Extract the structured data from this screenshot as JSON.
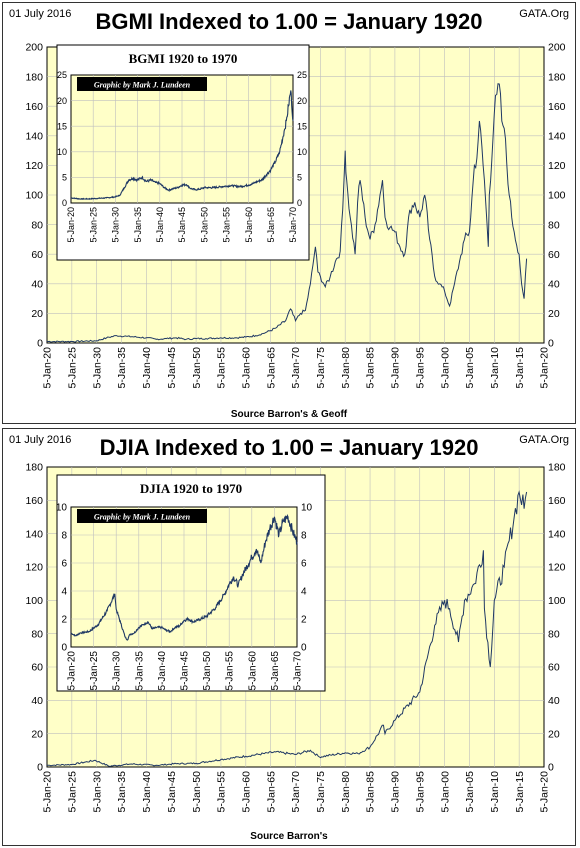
{
  "panels": [
    {
      "date": "01 July 2016",
      "site": "GATA.Org",
      "title": "BGMI  Indexed to 1.00 = January 1920",
      "source": "Source Barron's & Geoff",
      "inset_title": "BGMI  1920 to 1970",
      "credit": "Graphic by Mark J. Lundeen"
    },
    {
      "date": "01 July 2016",
      "site": "GATA.Org",
      "title": "DJIA  Indexed to 1.00 = January 1920",
      "source": "Source Barron's",
      "inset_title": "DJIA  1920 to 1970",
      "credit": "Graphic by Mark J. Lundeen"
    }
  ],
  "colors": {
    "plot_bg": "#FFFFC8",
    "line": "#1F3864",
    "grid": "#BFBFBF"
  },
  "chart_data": [
    {
      "id": "bgmi-main",
      "type": "line",
      "title": "BGMI  Indexed to 1.00 = January 1920",
      "xlabel": "Source Barron's & Geoff",
      "x_ticks": [
        "5-Jan-20",
        "5-Jan-25",
        "5-Jan-30",
        "5-Jan-35",
        "5-Jan-40",
        "5-Jan-45",
        "5-Jan-50",
        "5-Jan-55",
        "5-Jan-60",
        "5-Jan-65",
        "5-Jan-70",
        "5-Jan-75",
        "5-Jan-80",
        "5-Jan-85",
        "5-Jan-90",
        "5-Jan-95",
        "5-Jan-00",
        "5-Jan-05",
        "5-Jan-10",
        "5-Jan-15",
        "5-Jan-20"
      ],
      "xlim": [
        1920,
        2020
      ],
      "ylim": [
        0,
        200
      ],
      "y_ticks": [
        0,
        20,
        40,
        60,
        80,
        100,
        120,
        140,
        160,
        180,
        200
      ],
      "grid": true,
      "series": [
        {
          "x": [
            1920,
            1925,
            1930,
            1932,
            1934,
            1936,
            1938,
            1940,
            1942,
            1944,
            1946,
            1948,
            1950,
            1952,
            1955,
            1958,
            1960,
            1962,
            1964,
            1966,
            1968,
            1969,
            1970,
            1971,
            1972,
            1973,
            1974,
            1974.5,
            1975,
            1976,
            1977,
            1978,
            1979,
            1979.5,
            1980,
            1980.3,
            1981,
            1982,
            1982.5,
            1983,
            1984,
            1985,
            1986,
            1987,
            1987.5,
            1988,
            1989,
            1990,
            1991,
            1992,
            1993,
            1994,
            1995,
            1996,
            1997,
            1998,
            1999,
            2000,
            2001,
            2002,
            2003,
            2004,
            2005,
            2006,
            2006.5,
            2007,
            2008,
            2008.8,
            2009,
            2010,
            2010.5,
            2011,
            2011.5,
            2012,
            2013,
            2013.5,
            2014,
            2015,
            2015.5,
            2016,
            2016.5
          ],
          "y": [
            1.0,
            1.0,
            1.5,
            3.5,
            5.0,
            4.5,
            4.0,
            3.5,
            2.5,
            3.0,
            3.5,
            2.5,
            3.0,
            3.0,
            3.5,
            3.5,
            4.0,
            5.0,
            7.0,
            10.0,
            15.0,
            23.0,
            15.0,
            20.0,
            22.0,
            40.0,
            65.0,
            48.0,
            45.0,
            38.0,
            45.0,
            55.0,
            62.0,
            90.0,
            130.0,
            110.0,
            85.0,
            60.0,
            95.0,
            110.0,
            85.0,
            70.0,
            80.0,
            100.0,
            110.0,
            85.0,
            78.0,
            75.0,
            65.0,
            60.0,
            90.0,
            95.0,
            85.0,
            100.0,
            70.0,
            45.0,
            40.0,
            35.0,
            25.0,
            40.0,
            55.0,
            70.0,
            75.0,
            120.0,
            125.0,
            150.0,
            110.0,
            65.0,
            100.0,
            155.0,
            168.0,
            175.0,
            150.0,
            145.0,
            100.0,
            85.0,
            75.0,
            60.0,
            40.0,
            30.0,
            57.0
          ]
        }
      ]
    },
    {
      "id": "bgmi-inset",
      "type": "line",
      "title": "BGMI  1920 to 1970",
      "x_ticks": [
        "5-Jan-20",
        "5-Jan-25",
        "5-Jan-30",
        "5-Jan-35",
        "5-Jan-40",
        "5-Jan-45",
        "5-Jan-50",
        "5-Jan-55",
        "5-Jan-60",
        "5-Jan-65",
        "5-Jan-70"
      ],
      "xlim": [
        1920,
        1970
      ],
      "ylim": [
        0,
        25
      ],
      "y_ticks": [
        0,
        5,
        10,
        15,
        20,
        25
      ],
      "grid": true,
      "series": [
        {
          "x": [
            1920,
            1922,
            1924,
            1926,
            1928,
            1930,
            1931,
            1932,
            1933,
            1934,
            1935,
            1936,
            1937,
            1938,
            1939,
            1940,
            1941,
            1942,
            1943,
            1944,
            1945,
            1946,
            1947,
            1948,
            1949,
            1950,
            1952,
            1954,
            1956,
            1958,
            1960,
            1961,
            1962,
            1963,
            1964,
            1965,
            1966,
            1967,
            1968,
            1968.5,
            1969,
            1969.5,
            1970
          ],
          "y": [
            1.0,
            0.8,
            0.8,
            0.9,
            1.0,
            1.2,
            1.5,
            3.0,
            4.5,
            4.8,
            4.5,
            5.0,
            4.2,
            4.5,
            4.0,
            3.8,
            3.0,
            2.5,
            2.8,
            3.0,
            3.5,
            3.6,
            2.8,
            2.6,
            2.7,
            3.0,
            3.0,
            3.2,
            3.4,
            3.2,
            3.5,
            3.8,
            4.2,
            4.5,
            5.5,
            6.5,
            8.0,
            10.0,
            14.0,
            16.0,
            19.0,
            22.0,
            16.0
          ]
        }
      ]
    },
    {
      "id": "djia-main",
      "type": "line",
      "title": "DJIA  Indexed to 1.00 = January 1920",
      "xlabel": "Source Barron's",
      "x_ticks": [
        "5-Jan-20",
        "5-Jan-25",
        "5-Jan-30",
        "5-Jan-35",
        "5-Jan-40",
        "5-Jan-45",
        "5-Jan-50",
        "5-Jan-55",
        "5-Jan-60",
        "5-Jan-65",
        "5-Jan-70",
        "5-Jan-75",
        "5-Jan-80",
        "5-Jan-85",
        "5-Jan-90",
        "5-Jan-95",
        "5-Jan-00",
        "5-Jan-05",
        "5-Jan-10",
        "5-Jan-15",
        "5-Jan-20"
      ],
      "xlim": [
        1920,
        2020
      ],
      "ylim": [
        0,
        180
      ],
      "y_ticks": [
        0,
        20,
        40,
        60,
        80,
        100,
        120,
        140,
        160,
        180
      ],
      "grid": true,
      "series": [
        {
          "x": [
            1920,
            1925,
            1929.7,
            1932.5,
            1937,
            1942,
            1946,
            1950,
            1955,
            1960,
            1966,
            1970,
            1973,
            1974.8,
            1980,
            1982.6,
            1985,
            1987.7,
            1988,
            1990,
            1995,
            1998,
            2000,
            2001,
            2002.8,
            2004,
            2006,
            2007.8,
            2008,
            2009.2,
            2010,
            2012,
            2014,
            2015,
            2016,
            2016.5
          ],
          "y": [
            1.0,
            1.5,
            4.0,
            0.5,
            1.8,
            1.0,
            2.0,
            2.2,
            4.5,
            6.5,
            9.0,
            7.5,
            10.0,
            6.0,
            8.5,
            8.0,
            12.0,
            25.0,
            20.0,
            28.0,
            45.0,
            85.0,
            100.0,
            95.0,
            75.0,
            100.0,
            110.0,
            130.0,
            95.0,
            60.0,
            100.0,
            120.0,
            150.0,
            165.0,
            155.0,
            165.0
          ]
        }
      ]
    },
    {
      "id": "djia-inset",
      "type": "line",
      "title": "DJIA  1920 to 1970",
      "x_ticks": [
        "5-Jan-20",
        "5-Jan-25",
        "5-Jan-30",
        "5-Jan-35",
        "5-Jan-40",
        "5-Jan-45",
        "5-Jan-50",
        "5-Jan-55",
        "5-Jan-60",
        "5-Jan-65",
        "5-Jan-70"
      ],
      "xlim": [
        1920,
        1970
      ],
      "ylim": [
        0,
        10
      ],
      "y_ticks": [
        0,
        2,
        4,
        6,
        8,
        10
      ],
      "grid": true,
      "series": [
        {
          "x": [
            1920,
            1921,
            1922,
            1924,
            1926,
            1928,
            1929.7,
            1930,
            1931,
            1932,
            1932.5,
            1933,
            1934,
            1935,
            1936,
            1937,
            1938,
            1939,
            1940,
            1941,
            1942,
            1943,
            1944,
            1945,
            1946,
            1947,
            1948,
            1950,
            1952,
            1954,
            1955,
            1956,
            1957,
            1958,
            1960,
            1961,
            1962,
            1963,
            1964,
            1965,
            1966,
            1967,
            1968,
            1969,
            1970
          ],
          "y": [
            1.0,
            0.8,
            1.0,
            1.1,
            1.6,
            2.6,
            3.8,
            2.7,
            1.7,
            0.7,
            0.5,
            0.9,
            1.0,
            1.4,
            1.6,
            1.8,
            1.3,
            1.4,
            1.4,
            1.2,
            1.1,
            1.4,
            1.5,
            1.9,
            2.0,
            1.8,
            1.9,
            2.2,
            2.8,
            3.8,
            4.5,
            5.0,
            4.4,
            5.2,
            6.4,
            7.0,
            6.0,
            7.5,
            8.5,
            9.3,
            8.0,
            9.0,
            9.3,
            8.3,
            7.5
          ]
        }
      ]
    }
  ]
}
